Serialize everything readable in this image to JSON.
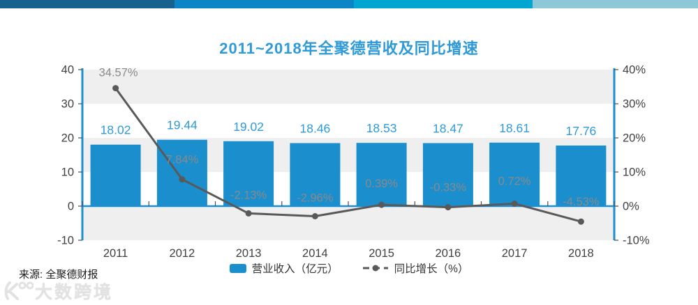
{
  "header": {
    "bar_colors": [
      "#17618f",
      "#0b85c6",
      "#00a6d0",
      "#8ec8d8"
    ]
  },
  "title": "2011~2018年全聚德营收及同比增速",
  "chart_data": {
    "type": "bar+line combo",
    "title": "2011~2018年全聚德营收及同比增速",
    "categories": [
      "2011",
      "2012",
      "2013",
      "2014",
      "2015",
      "2016",
      "2017",
      "2018"
    ],
    "series": [
      {
        "name": "营业收入（亿元）",
        "type": "bar",
        "axis": "left",
        "values": [
          18.02,
          19.44,
          19.02,
          18.46,
          18.53,
          18.47,
          18.61,
          17.76
        ],
        "color": "#1b8ecd"
      },
      {
        "name": "同比增长（%）",
        "type": "line",
        "axis": "right",
        "values": [
          34.57,
          7.84,
          -2.13,
          -2.96,
          0.39,
          -0.33,
          0.72,
          -4.53
        ],
        "color": "#595959"
      }
    ],
    "bar_labels": [
      "18.02",
      "19.44",
      "19.02",
      "18.46",
      "18.53",
      "18.47",
      "18.61",
      "17.76"
    ],
    "line_labels": [
      "34.57%",
      "7.84%",
      "-2.13%",
      "-2.96%",
      "0.39%",
      "-0.33%",
      "0.72%",
      "-4.53%"
    ],
    "left_axis": {
      "ticks": [
        "40",
        "30",
        "20",
        "10",
        "0",
        "-10"
      ],
      "min": -10,
      "max": 40
    },
    "right_axis": {
      "ticks": [
        "40%",
        "30%",
        "20%",
        "10%",
        "0%",
        "-10%"
      ],
      "min": -10,
      "max": 40
    },
    "plot_band_colors": [
      "#efefef",
      "#ffffff"
    ],
    "axis_line_color": "#1d8fd1",
    "tick_color": "#4d4d4d",
    "label_colors": {
      "bar": "#2e9ad7",
      "line": "#8a8a8a",
      "axis": "#404040"
    },
    "grid": "horizontal bands",
    "legend_position": "bottom"
  },
  "legend": {
    "items": [
      {
        "label": "营业收入（亿元）",
        "marker": "bar-swatch",
        "color": "#1b8ecd"
      },
      {
        "label": "同比增长（%）",
        "marker": "line-dot",
        "color": "#595959"
      }
    ]
  },
  "footer": {
    "source": "来源: 全聚德财报",
    "watermark": "大数跨境"
  },
  "title_color": "#2e9ad7"
}
